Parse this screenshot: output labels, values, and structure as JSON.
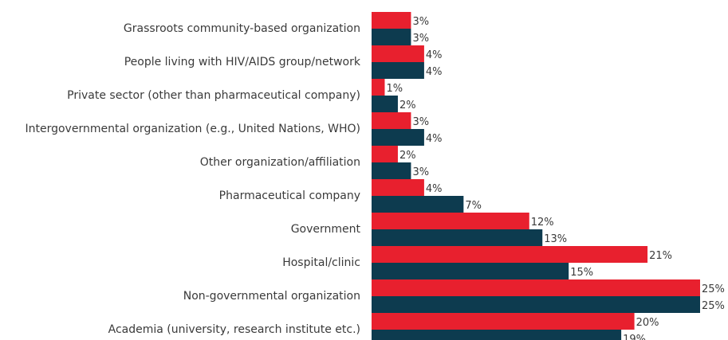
{
  "chart_data": {
    "type": "bar",
    "orientation": "horizontal",
    "categories": [
      "Grassroots community-based organization",
      "People living with HIV/AIDS group/network",
      "Private sector (other than pharmaceutical company)",
      "Intergovernmental organization (e.g., United Nations, WHO)",
      "Other organization/affiliation",
      "Pharmaceutical company",
      "Government",
      "Hospital/clinic",
      "Non-governmental organization",
      "Academia (university, research institute etc.)"
    ],
    "series": [
      {
        "color": "#e8202e",
        "values": [
          3,
          4,
          1,
          3,
          2,
          4,
          12,
          21,
          25,
          20
        ],
        "value_labels": [
          "3%",
          "4%",
          "1%",
          "3%",
          "2%",
          "4%",
          "12%",
          "21%",
          "25%",
          "20%"
        ]
      },
      {
        "color": "#0d3b4f",
        "values": [
          3,
          4,
          2,
          4,
          3,
          7,
          13,
          15,
          25,
          19
        ],
        "value_labels": [
          "3%",
          "4%",
          "2%",
          "4%",
          "3%",
          "7%",
          "13%",
          "15%",
          "25%",
          "19%"
        ]
      }
    ],
    "xlim": [
      0,
      25
    ]
  }
}
